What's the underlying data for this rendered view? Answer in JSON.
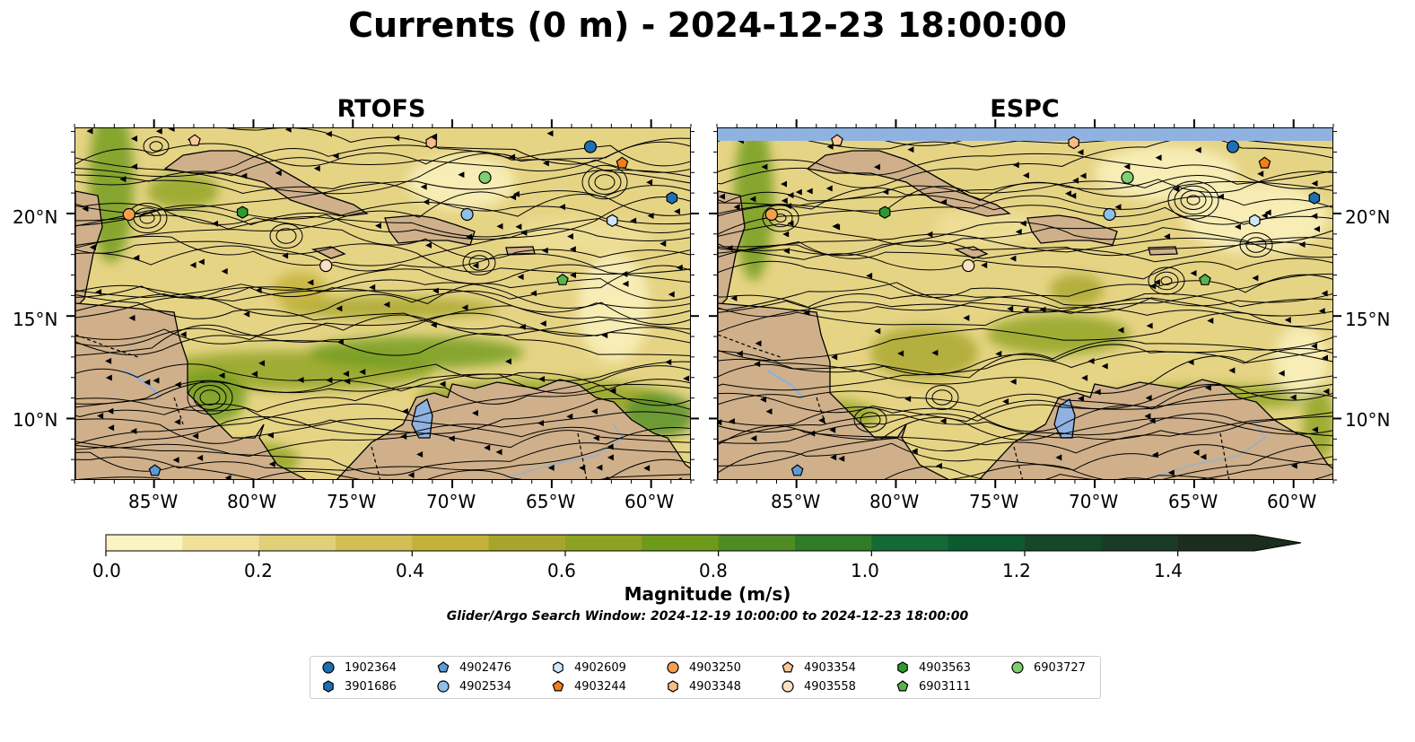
{
  "title": "Currents (0 m) - 2024-12-23 18:00:00",
  "panels": [
    {
      "title": "RTOFS"
    },
    {
      "title": "ESPC"
    }
  ],
  "axes": {
    "lon_labels": [
      "85°W",
      "80°W",
      "75°W",
      "70°W",
      "65°W",
      "60°W"
    ],
    "lat_labels": [
      "20°N",
      "15°N",
      "10°N"
    ],
    "lon_range": [
      -89,
      -58
    ],
    "lat_range": [
      7,
      24.2
    ]
  },
  "colorbar": {
    "label": "Magnitude (m/s)",
    "tick_labels": [
      "0.0",
      "0.2",
      "0.4",
      "0.6",
      "0.8",
      "1.0",
      "1.2",
      "1.4"
    ],
    "range": [
      0,
      1.5
    ],
    "extend": "max",
    "colors": [
      "#fbf3c1",
      "#efe09a",
      "#e2cf79",
      "#d3bd55",
      "#c3b13a",
      "#a8a52c",
      "#8da220",
      "#6e9a1c",
      "#4f8c23",
      "#2f7b28",
      "#146a34",
      "#0e5a30",
      "#16472a",
      "#1a3b25",
      "#1b2e1d"
    ]
  },
  "search_window": "Glider/Argo Search Window: 2024-12-19 10:00:00 to 2024-12-23 18:00:00",
  "colors": {
    "land": "#cfb08a",
    "lake": "#8fb2e0",
    "ocean_base": "#e6d485",
    "strong_current": "#5e9526"
  },
  "legend": [
    {
      "id": "1902364",
      "marker": "circle",
      "color": "#1f6fb4"
    },
    {
      "id": "3901686",
      "marker": "hexagon",
      "color": "#1f6fb4"
    },
    {
      "id": "4902476",
      "marker": "pentagon",
      "color": "#5b9bd5"
    },
    {
      "id": "4902534",
      "marker": "circle",
      "color": "#8ec1ea"
    },
    {
      "id": "4902609",
      "marker": "hexagon",
      "color": "#cfe6f8"
    },
    {
      "id": "4903244",
      "marker": "pentagon",
      "color": "#f07e1a"
    },
    {
      "id": "4903250",
      "marker": "circle",
      "color": "#f6a04e"
    },
    {
      "id": "4903348",
      "marker": "hexagon",
      "color": "#f8bc84"
    },
    {
      "id": "4903354",
      "marker": "pentagon",
      "color": "#f9c89c"
    },
    {
      "id": "4903558",
      "marker": "circle",
      "color": "#fde0c4"
    },
    {
      "id": "4903563",
      "marker": "hexagon",
      "color": "#2e9a2e"
    },
    {
      "id": "6903111",
      "marker": "pentagon",
      "color": "#55b44c"
    },
    {
      "id": "6903727",
      "marker": "circle",
      "color": "#7fcf72"
    }
  ],
  "floats": [
    {
      "id": "1902364",
      "lon": -63.1,
      "lat": 23.3
    },
    {
      "id": "3901686",
      "lon": -59.0,
      "lat": 20.8
    },
    {
      "id": "4902476",
      "lon": -85.0,
      "lat": 7.5
    },
    {
      "id": "4902534",
      "lon": -69.3,
      "lat": 20.0
    },
    {
      "id": "4902609",
      "lon": -62.0,
      "lat": 19.7
    },
    {
      "id": "4903244",
      "lon": -61.5,
      "lat": 22.5
    },
    {
      "id": "4903250",
      "lon": -86.3,
      "lat": 20.0
    },
    {
      "id": "4903348",
      "lon": -71.1,
      "lat": 23.5
    },
    {
      "id": "4903354",
      "lon": -83.0,
      "lat": 23.6
    },
    {
      "id": "4903558",
      "lon": -76.4,
      "lat": 17.5
    },
    {
      "id": "4903563",
      "lon": -80.6,
      "lat": 20.1
    },
    {
      "id": "6903111",
      "lon": -64.5,
      "lat": 16.8
    },
    {
      "id": "6903727",
      "lon": -68.4,
      "lat": 21.8
    }
  ]
}
